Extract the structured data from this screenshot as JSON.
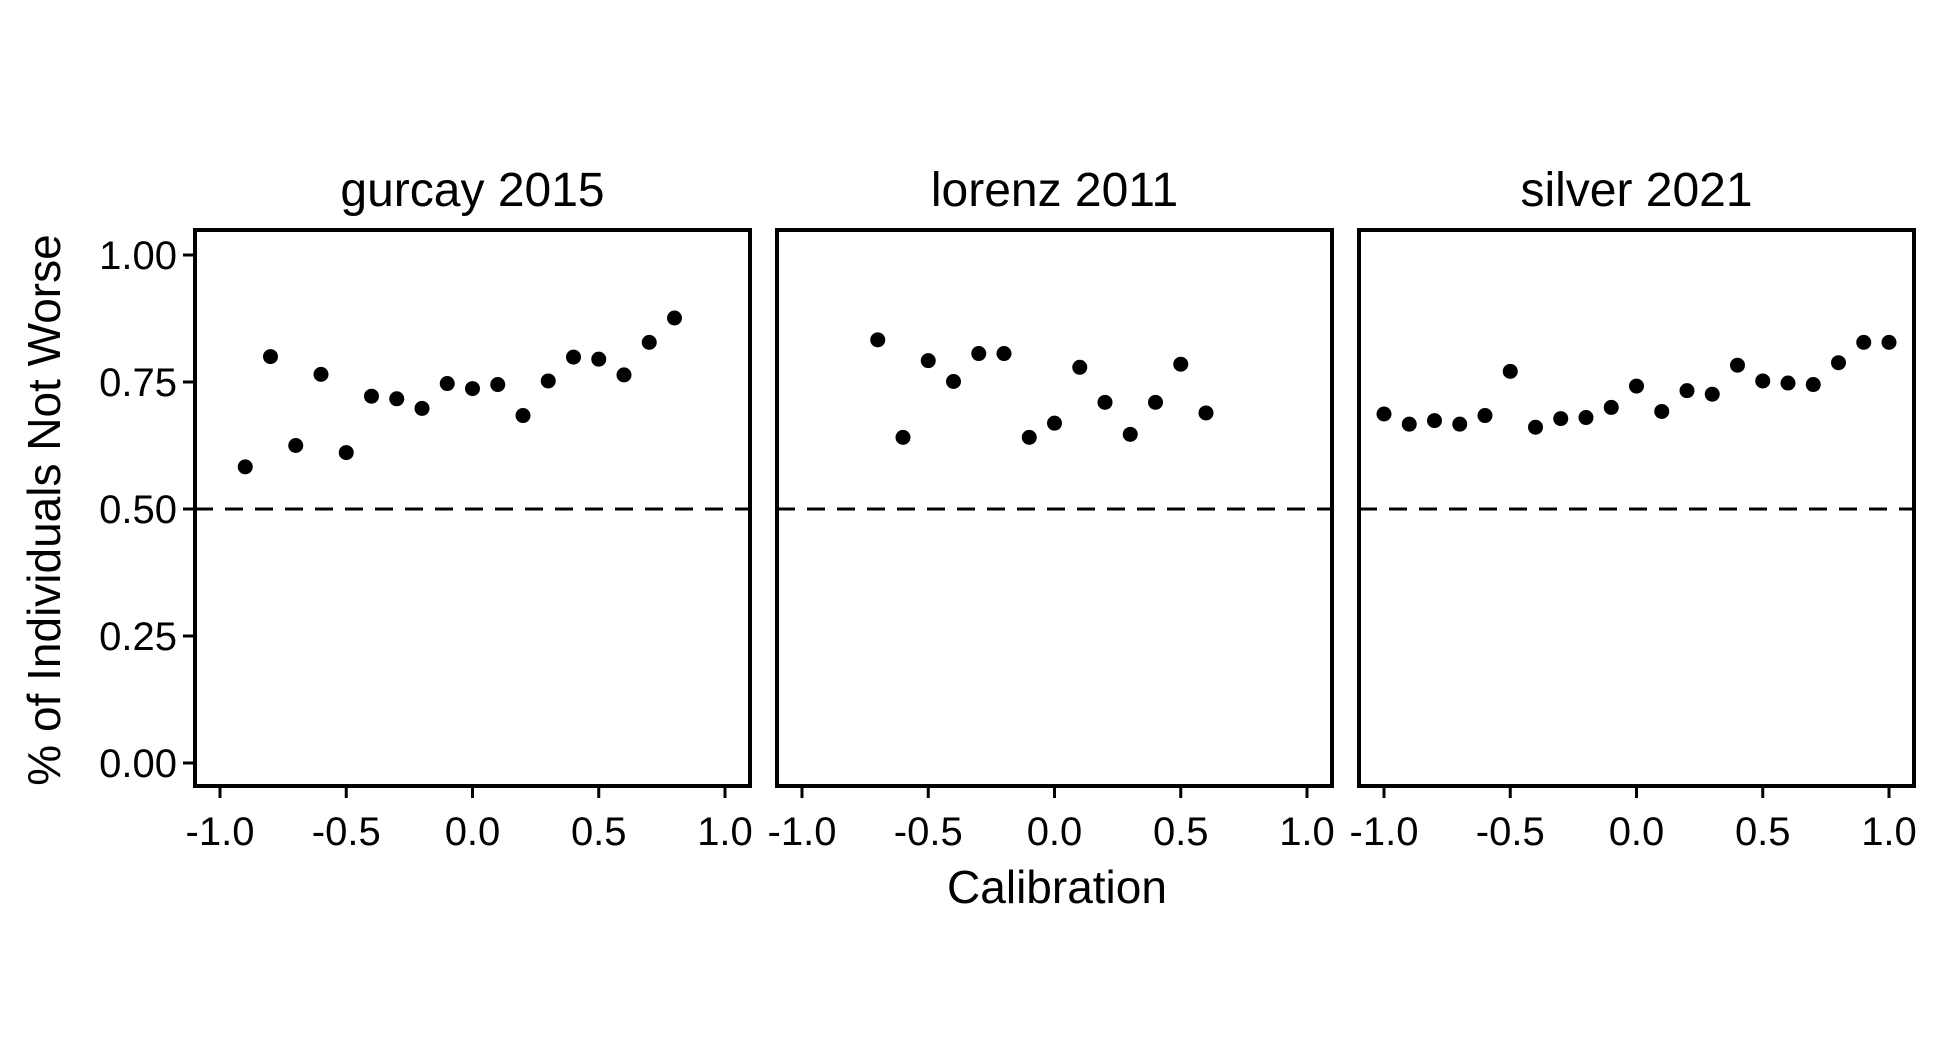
{
  "chart_data": {
    "type": "scatter",
    "ylabel": "% of Individuals Not Worse",
    "xlabel": "Calibration",
    "xlim": [
      -1.0,
      1.0
    ],
    "ylim": [
      0.0,
      1.0
    ],
    "x_ticks": [
      "-1.0",
      "-0.5",
      "0.0",
      "0.5",
      "1.0"
    ],
    "y_ticks": [
      "0.00",
      "0.25",
      "0.50",
      "0.75",
      "1.00"
    ],
    "reference_line": {
      "y": 0.5,
      "style": "dashed"
    },
    "panels": [
      {
        "title": "gurcay 2015",
        "points": [
          {
            "x": -0.9,
            "y": 0.583
          },
          {
            "x": -0.8,
            "y": 0.8
          },
          {
            "x": -0.7,
            "y": 0.625
          },
          {
            "x": -0.6,
            "y": 0.765
          },
          {
            "x": -0.5,
            "y": 0.611
          },
          {
            "x": -0.4,
            "y": 0.722
          },
          {
            "x": -0.3,
            "y": 0.717
          },
          {
            "x": -0.2,
            "y": 0.698
          },
          {
            "x": -0.1,
            "y": 0.747
          },
          {
            "x": 0.0,
            "y": 0.737
          },
          {
            "x": 0.1,
            "y": 0.745
          },
          {
            "x": 0.2,
            "y": 0.684
          },
          {
            "x": 0.3,
            "y": 0.752
          },
          {
            "x": 0.4,
            "y": 0.799
          },
          {
            "x": 0.5,
            "y": 0.795
          },
          {
            "x": 0.6,
            "y": 0.764
          },
          {
            "x": 0.7,
            "y": 0.828
          },
          {
            "x": 0.8,
            "y": 0.876
          }
        ]
      },
      {
        "title": "lorenz 2011",
        "points": [
          {
            "x": -0.7,
            "y": 0.833
          },
          {
            "x": -0.6,
            "y": 0.641
          },
          {
            "x": -0.5,
            "y": 0.792
          },
          {
            "x": -0.4,
            "y": 0.751
          },
          {
            "x": -0.3,
            "y": 0.806
          },
          {
            "x": -0.2,
            "y": 0.806
          },
          {
            "x": -0.1,
            "y": 0.641
          },
          {
            "x": 0.0,
            "y": 0.669
          },
          {
            "x": 0.1,
            "y": 0.779
          },
          {
            "x": 0.2,
            "y": 0.71
          },
          {
            "x": 0.3,
            "y": 0.647
          },
          {
            "x": 0.4,
            "y": 0.71
          },
          {
            "x": 0.5,
            "y": 0.785
          },
          {
            "x": 0.6,
            "y": 0.689
          }
        ]
      },
      {
        "title": "silver 2021",
        "points": [
          {
            "x": -1.0,
            "y": 0.687
          },
          {
            "x": -0.9,
            "y": 0.667
          },
          {
            "x": -0.8,
            "y": 0.674
          },
          {
            "x": -0.7,
            "y": 0.667
          },
          {
            "x": -0.6,
            "y": 0.684
          },
          {
            "x": -0.5,
            "y": 0.771
          },
          {
            "x": -0.4,
            "y": 0.661
          },
          {
            "x": -0.3,
            "y": 0.678
          },
          {
            "x": -0.2,
            "y": 0.68
          },
          {
            "x": -0.1,
            "y": 0.7
          },
          {
            "x": 0.0,
            "y": 0.742
          },
          {
            "x": 0.1,
            "y": 0.692
          },
          {
            "x": 0.2,
            "y": 0.733
          },
          {
            "x": 0.3,
            "y": 0.726
          },
          {
            "x": 0.4,
            "y": 0.783
          },
          {
            "x": 0.5,
            "y": 0.752
          },
          {
            "x": 0.6,
            "y": 0.748
          },
          {
            "x": 0.7,
            "y": 0.745
          },
          {
            "x": 0.8,
            "y": 0.788
          },
          {
            "x": 0.9,
            "y": 0.828
          },
          {
            "x": 1.0,
            "y": 0.828
          }
        ]
      }
    ]
  },
  "colors": {
    "points": "#000000",
    "frame": "#000000",
    "background": "#ffffff"
  }
}
